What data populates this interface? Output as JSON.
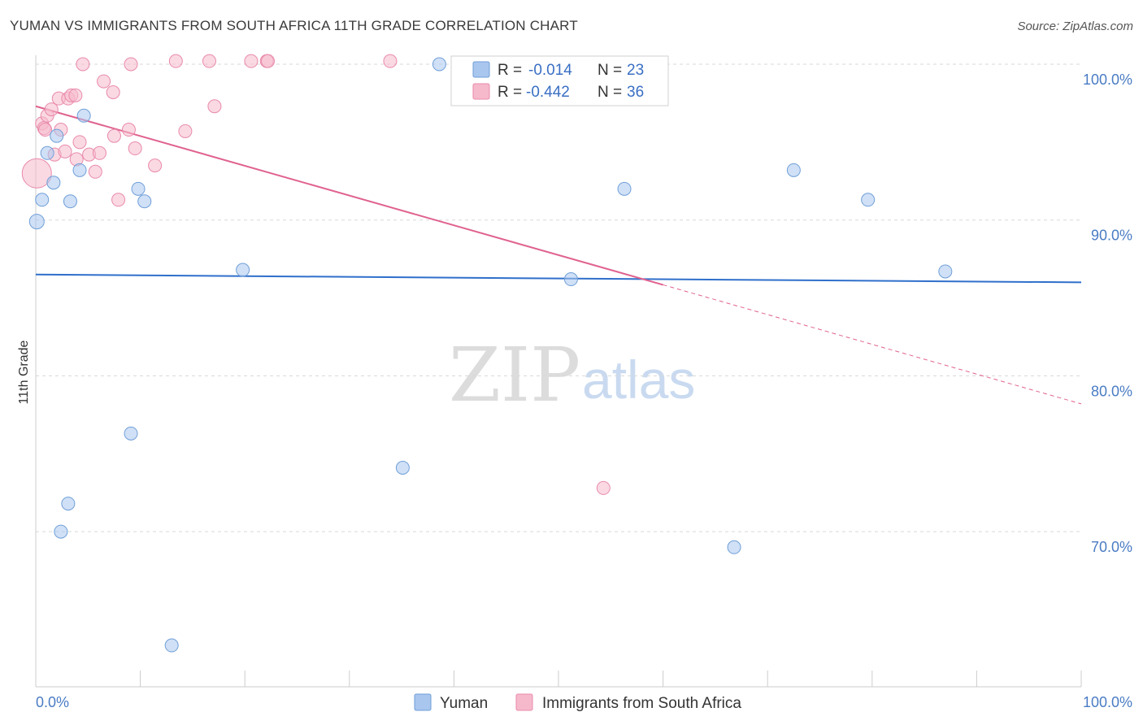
{
  "title": "YUMAN VS IMMIGRANTS FROM SOUTH AFRICA 11TH GRADE CORRELATION CHART",
  "source": "Source: ZipAtlas.com",
  "watermark": {
    "part1": "ZIP",
    "part2": "atlas"
  },
  "colors": {
    "blue_fill": "#a9c6ee",
    "blue_stroke": "#6f9fd8",
    "blue_line": "#2f6fcb",
    "pink_fill": "#f6b9cc",
    "pink_stroke": "#e98aaa",
    "pink_line": "#e0628f",
    "grid": "#d8d8d8",
    "axis": "#cccccc"
  },
  "legend_box": {
    "rows": [
      {
        "r_label": "R =",
        "r_value": "-0.014",
        "n_label": "N =",
        "n_value": "23",
        "series": "blue"
      },
      {
        "r_label": "R =",
        "r_value": "-0.442",
        "n_label": "N =",
        "n_value": "36",
        "series": "pink"
      }
    ]
  },
  "bottom_legend": [
    {
      "label": "Yuman",
      "series": "blue"
    },
    {
      "label": "Immigrants from South Africa",
      "series": "pink"
    }
  ],
  "chart_data": {
    "type": "scatter",
    "title": "YUMAN VS IMMIGRANTS FROM SOUTH AFRICA 11TH GRADE CORRELATION CHART",
    "xlabel": "",
    "ylabel": "11th Grade",
    "xlim": [
      0,
      100
    ],
    "ylim": [
      60.0,
      101.0
    ],
    "x_tick_labels": [
      "0.0%",
      "100.0%"
    ],
    "y_ticks": [
      {
        "value": 70.0,
        "label": "70.0%"
      },
      {
        "value": 80.0,
        "label": "80.0%"
      },
      {
        "value": 90.0,
        "label": "90.0%"
      },
      {
        "value": 100.0,
        "label": "100.0%"
      }
    ],
    "grid": true,
    "legend_position": "top-center",
    "series": [
      {
        "name": "Yuman",
        "color": "blue",
        "points": [
          {
            "x": 0.1,
            "y": 89.9,
            "r": 9
          },
          {
            "x": 0.6,
            "y": 91.3
          },
          {
            "x": 1.1,
            "y": 94.3
          },
          {
            "x": 1.7,
            "y": 92.4
          },
          {
            "x": 2.0,
            "y": 95.4
          },
          {
            "x": 2.4,
            "y": 70.0
          },
          {
            "x": 3.1,
            "y": 71.8
          },
          {
            "x": 3.3,
            "y": 91.2
          },
          {
            "x": 4.2,
            "y": 93.2
          },
          {
            "x": 4.6,
            "y": 96.7
          },
          {
            "x": 9.1,
            "y": 76.3
          },
          {
            "x": 9.8,
            "y": 92.0
          },
          {
            "x": 10.4,
            "y": 91.2
          },
          {
            "x": 13.0,
            "y": 62.7
          },
          {
            "x": 19.8,
            "y": 86.8
          },
          {
            "x": 35.1,
            "y": 74.1
          },
          {
            "x": 38.6,
            "y": 100.0
          },
          {
            "x": 51.2,
            "y": 86.2
          },
          {
            "x": 56.3,
            "y": 92.0
          },
          {
            "x": 66.8,
            "y": 69.0
          },
          {
            "x": 72.5,
            "y": 93.2
          },
          {
            "x": 79.6,
            "y": 91.3
          },
          {
            "x": 87.0,
            "y": 86.7
          }
        ],
        "trend": {
          "x0": 0,
          "y0": 86.5,
          "x1": 100,
          "y1": 86.0
        }
      },
      {
        "name": "Immigrants from South Africa",
        "color": "pink",
        "points": [
          {
            "x": 0.1,
            "y": 93.0,
            "r": 18
          },
          {
            "x": 0.6,
            "y": 96.2
          },
          {
            "x": 0.8,
            "y": 95.9
          },
          {
            "x": 1.1,
            "y": 96.7
          },
          {
            "x": 1.5,
            "y": 97.1
          },
          {
            "x": 1.8,
            "y": 94.2
          },
          {
            "x": 2.2,
            "y": 97.8
          },
          {
            "x": 2.4,
            "y": 95.8
          },
          {
            "x": 2.8,
            "y": 94.4
          },
          {
            "x": 3.1,
            "y": 97.8
          },
          {
            "x": 3.4,
            "y": 98.0
          },
          {
            "x": 3.8,
            "y": 98.0
          },
          {
            "x": 3.9,
            "y": 93.9
          },
          {
            "x": 4.2,
            "y": 95.0
          },
          {
            "x": 4.5,
            "y": 100.0
          },
          {
            "x": 5.1,
            "y": 94.2
          },
          {
            "x": 5.7,
            "y": 93.1
          },
          {
            "x": 6.1,
            "y": 94.3
          },
          {
            "x": 6.5,
            "y": 98.9
          },
          {
            "x": 7.4,
            "y": 98.2
          },
          {
            "x": 7.5,
            "y": 95.4
          },
          {
            "x": 7.9,
            "y": 91.3
          },
          {
            "x": 8.9,
            "y": 95.8
          },
          {
            "x": 9.1,
            "y": 100.0
          },
          {
            "x": 9.5,
            "y": 94.6
          },
          {
            "x": 11.4,
            "y": 93.5
          },
          {
            "x": 14.3,
            "y": 95.7
          },
          {
            "x": 13.4,
            "y": 100.2
          },
          {
            "x": 16.6,
            "y": 100.2
          },
          {
            "x": 17.1,
            "y": 97.3
          },
          {
            "x": 20.6,
            "y": 100.2
          },
          {
            "x": 22.1,
            "y": 100.2
          },
          {
            "x": 22.2,
            "y": 100.2
          },
          {
            "x": 33.9,
            "y": 100.2
          },
          {
            "x": 54.3,
            "y": 72.8
          },
          {
            "x": 0.9,
            "y": 95.8
          }
        ],
        "trend": {
          "x0": 0,
          "y0": 97.3,
          "x1": 100,
          "y1": 78.2,
          "solid_until_x": 60
        }
      }
    ]
  }
}
